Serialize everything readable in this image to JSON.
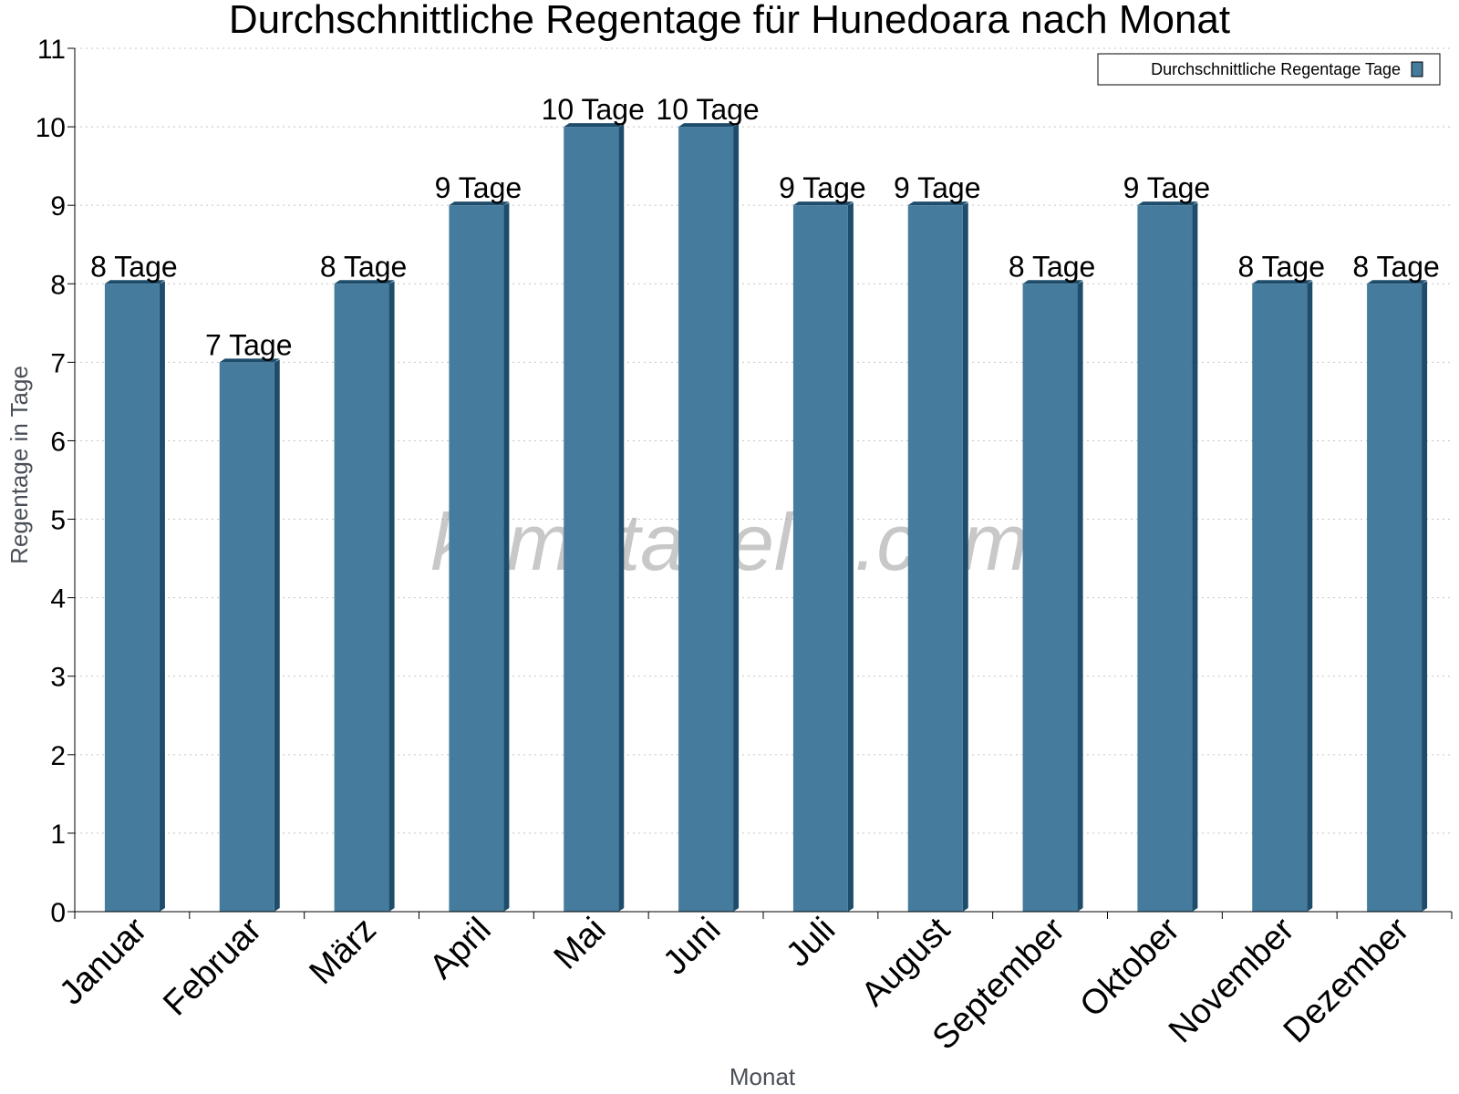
{
  "chart_data": {
    "type": "bar",
    "title": "Durchschnittliche Regentage für Hunedoara nach Monat",
    "xlabel": "Monat",
    "ylabel": "Regentage in Tage",
    "categories": [
      "Januar",
      "Februar",
      "März",
      "April",
      "Mai",
      "Juni",
      "Juli",
      "August",
      "September",
      "Oktober",
      "November",
      "Dezember"
    ],
    "series": [
      {
        "name": "Durchschnittliche Regentage Tage",
        "values": [
          8,
          7,
          8,
          9,
          10,
          10,
          9,
          9,
          8,
          9,
          8,
          8
        ],
        "data_labels": [
          "8 Tage",
          "7 Tage",
          "8 Tage",
          "9 Tage",
          "10 Tage",
          "10 Tage",
          "9 Tage",
          "9 Tage",
          "8 Tage",
          "9 Tage",
          "8 Tage",
          "8 Tage"
        ],
        "color": "#457b9d",
        "side_color": "#1e4d6b"
      }
    ],
    "ylim": [
      0,
      11
    ],
    "yticks": [
      0,
      1,
      2,
      3,
      4,
      5,
      6,
      7,
      8,
      9,
      10,
      11
    ],
    "grid": true,
    "legend_position": "top-right",
    "watermark": "klimatabelle.com"
  }
}
